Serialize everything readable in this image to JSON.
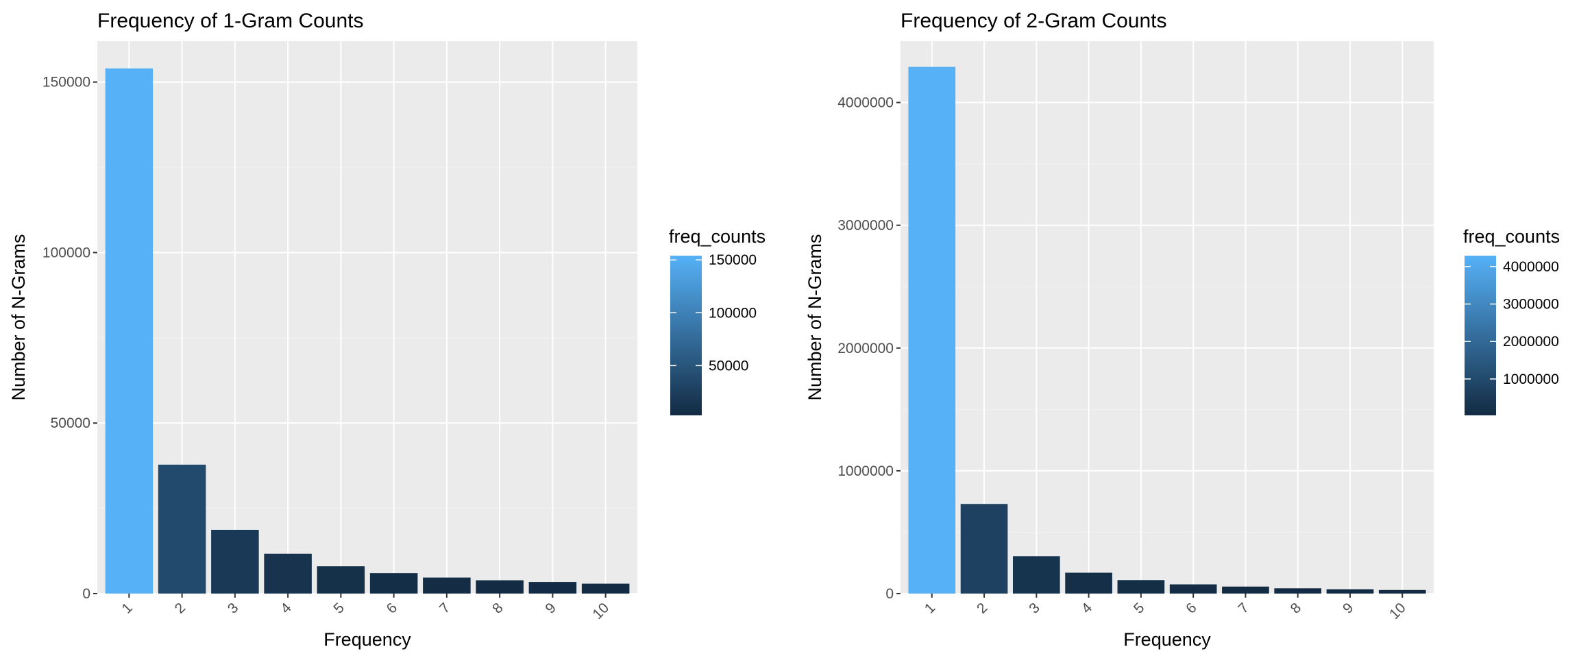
{
  "chart_data": [
    {
      "type": "bar",
      "title": "Frequency of 1-Gram Counts",
      "xlabel": "Frequency",
      "ylabel": "Number of N-Grams",
      "categories": [
        "1",
        "2",
        "3",
        "4",
        "5",
        "6",
        "7",
        "8",
        "9",
        "10"
      ],
      "values": [
        154000,
        37800,
        18700,
        11700,
        8000,
        6000,
        4700,
        3900,
        3400,
        2900
      ],
      "ylim": [
        0,
        162000
      ],
      "yticks": [
        0,
        50000,
        100000,
        150000
      ],
      "ytick_labels": [
        "0",
        "50000",
        "100000",
        "150000"
      ],
      "grid": true,
      "legend": {
        "title": "freq_counts",
        "placement": "right",
        "type": "colorbar",
        "min": 2900,
        "max": 154000,
        "ticks": [
          50000,
          100000,
          150000
        ],
        "tick_labels": [
          "50000",
          "100000",
          "150000"
        ],
        "color_low": "#132b43",
        "color_high": "#56b1f7"
      }
    },
    {
      "type": "bar",
      "title": "Frequency of 2-Gram Counts",
      "xlabel": "Frequency",
      "ylabel": "Number of N-Grams",
      "categories": [
        "1",
        "2",
        "3",
        "4",
        "5",
        "6",
        "7",
        "8",
        "9",
        "10"
      ],
      "values": [
        4290000,
        730000,
        305000,
        170000,
        110000,
        75000,
        57000,
        43000,
        35000,
        29000
      ],
      "ylim": [
        0,
        4500000
      ],
      "yticks": [
        0,
        1000000,
        2000000,
        3000000,
        4000000
      ],
      "ytick_labels": [
        "0",
        "1000000",
        "2000000",
        "3000000",
        "4000000"
      ],
      "grid": true,
      "legend": {
        "title": "freq_counts",
        "placement": "right",
        "type": "colorbar",
        "min": 29000,
        "max": 4290000,
        "ticks": [
          1000000,
          2000000,
          3000000,
          4000000
        ],
        "tick_labels": [
          "1000000",
          "2000000",
          "3000000",
          "4000000"
        ],
        "color_low": "#132b43",
        "color_high": "#56b1f7"
      }
    }
  ],
  "colors": {
    "panel_background": "#ebebeb",
    "grid_major": "#ffffff",
    "grid_minor": "#f3f3f3",
    "tick_text": "#4d4d4d",
    "axis_tick": "#333333"
  }
}
